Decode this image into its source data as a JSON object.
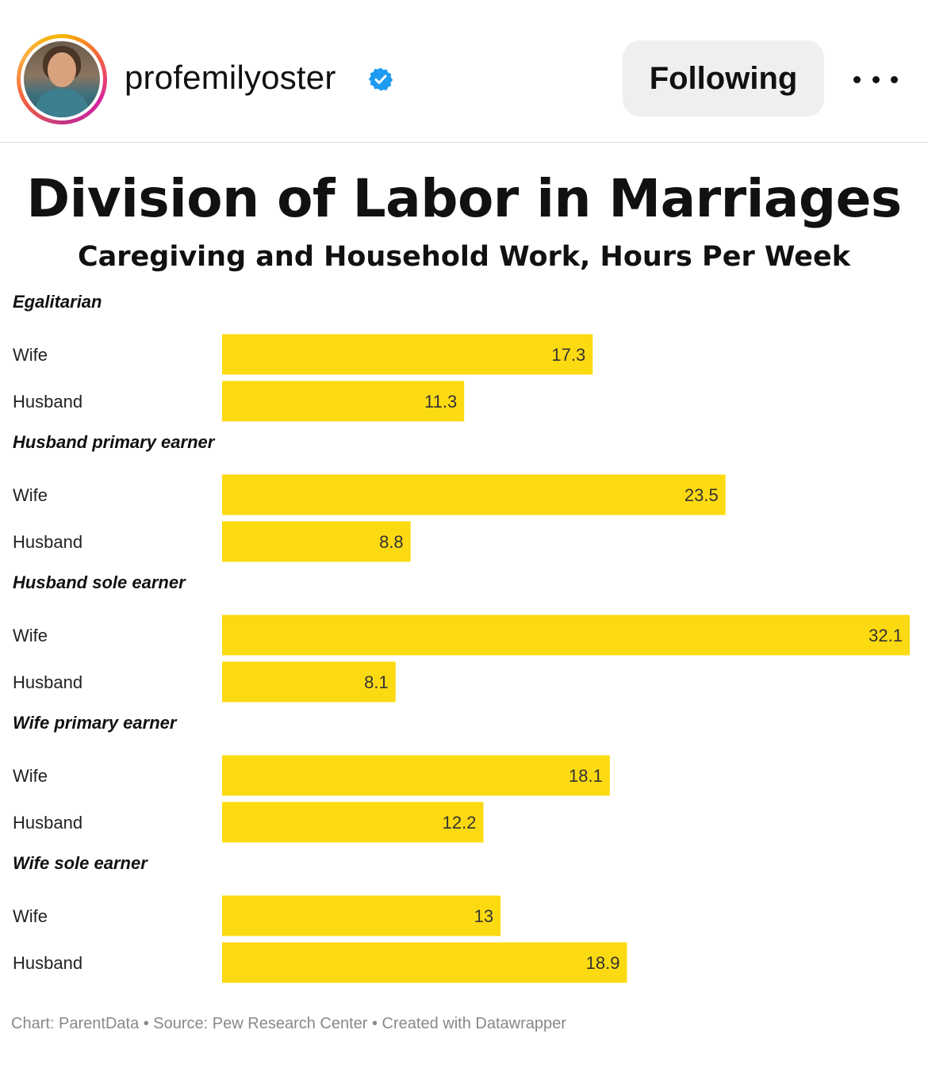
{
  "post_header": {
    "username": "profemilyoster",
    "follow_label": "Following",
    "accent_color": "#1d9bf0"
  },
  "chart_data": {
    "type": "bar",
    "orientation": "horizontal",
    "title": "Division of Labor in Marriages",
    "subtitle": "Caregiving and Household Work, Hours Per Week",
    "bar_color": "#fcda11",
    "xlim": [
      0,
      32.1
    ],
    "grid": false,
    "groups": [
      {
        "name": "Egalitarian",
        "rows": [
          {
            "label": "Wife",
            "value": 17.3
          },
          {
            "label": "Husband",
            "value": 11.3
          }
        ]
      },
      {
        "name": "Husband primary earner",
        "rows": [
          {
            "label": "Wife",
            "value": 23.5
          },
          {
            "label": "Husband",
            "value": 8.8
          }
        ]
      },
      {
        "name": "Husband sole earner",
        "rows": [
          {
            "label": "Wife",
            "value": 32.1
          },
          {
            "label": "Husband",
            "value": 8.1
          }
        ]
      },
      {
        "name": "Wife primary earner",
        "rows": [
          {
            "label": "Wife",
            "value": 18.1
          },
          {
            "label": "Husband",
            "value": 12.2
          }
        ]
      },
      {
        "name": "Wife sole earner",
        "rows": [
          {
            "label": "Wife",
            "value": 13
          },
          {
            "label": "Husband",
            "value": 18.9
          }
        ]
      }
    ],
    "footer": "Chart: ParentData • Source: Pew Research Center • Created with Datawrapper"
  }
}
